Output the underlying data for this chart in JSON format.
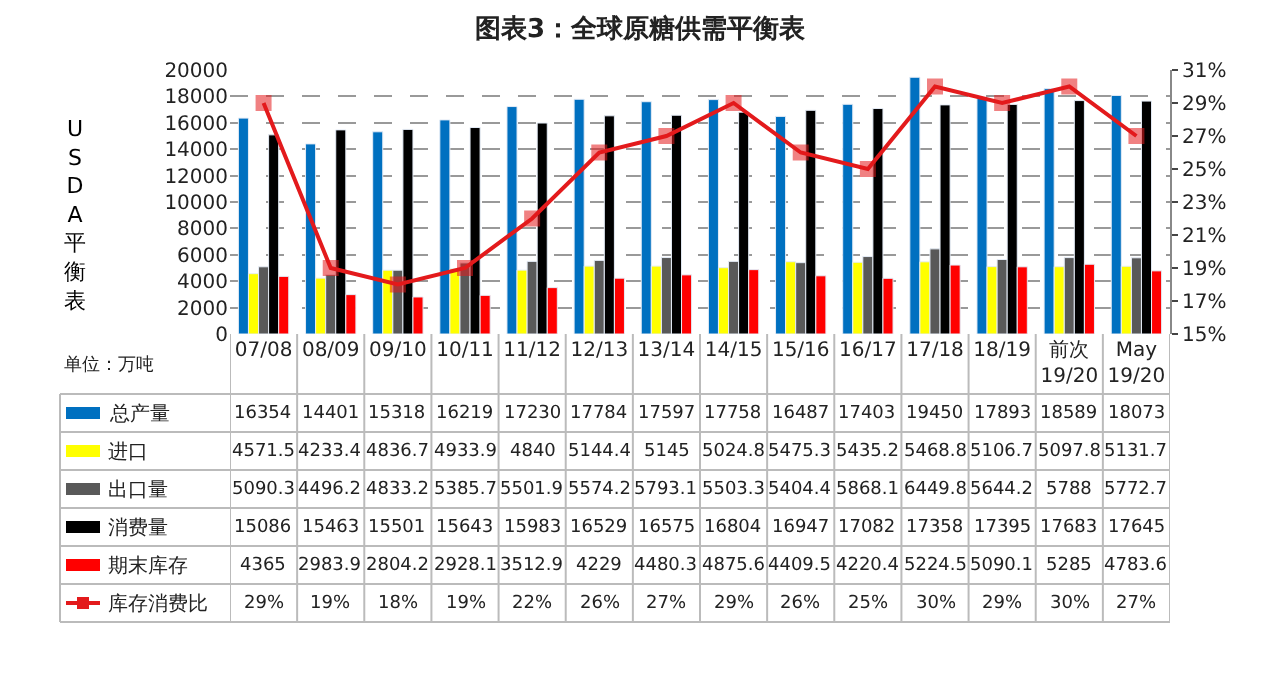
{
  "chart_data": {
    "type": "bar",
    "title": "图表3：全球原糖供需平衡表",
    "ylabel": "USDA平衡表",
    "annotations": [
      "单位：万吨"
    ],
    "categories": [
      "07/08",
      "08/09",
      "09/10",
      "10/11",
      "11/12",
      "12/13",
      "13/14",
      "14/15",
      "15/16",
      "16/17",
      "17/18",
      "18/19",
      "前次19/20",
      "May19/20"
    ],
    "series": [
      {
        "name": "总产量",
        "color": "#0070c0",
        "values": [
          16354,
          14401,
          15318,
          16219,
          17230,
          17784,
          17597,
          17758,
          16487,
          17403,
          19450,
          17893,
          18589,
          18073
        ]
      },
      {
        "name": "进口",
        "color": "#ffff00",
        "values": [
          4571.5,
          4233.4,
          4836.7,
          4933.9,
          4840,
          5144.4,
          5145,
          5024.8,
          5475.3,
          5435.2,
          5468.8,
          5106.7,
          5097.8,
          5131.7
        ]
      },
      {
        "name": "出口量",
        "color": "#595959",
        "values": [
          5090.3,
          4496.2,
          4833.2,
          5385.7,
          5501.9,
          5574.2,
          5793.1,
          5503.3,
          5404.4,
          5868.1,
          6449.8,
          5644.2,
          5788,
          5772.7
        ]
      },
      {
        "name": "消费量",
        "color": "#000000",
        "values": [
          15086,
          15463,
          15501,
          15643,
          15983,
          16529,
          16575,
          16804,
          16947,
          17082,
          17358,
          17395,
          17683,
          17645
        ]
      },
      {
        "name": "期末库存",
        "color": "#ff0000",
        "values": [
          4365,
          2983.9,
          2804.2,
          2928.1,
          3512.9,
          4229,
          4480.3,
          4875.6,
          4409.5,
          4220.4,
          5224.5,
          5090.1,
          5285,
          4783.6
        ]
      },
      {
        "name": "库存消费比",
        "color": "#e31a1c",
        "type": "line",
        "axis": "y2",
        "marker": "square",
        "values": [
          29,
          19,
          18,
          19,
          22,
          26,
          27,
          29,
          26,
          25,
          30,
          29,
          30,
          27
        ],
        "value_labels": [
          "29%",
          "19%",
          "18%",
          "19%",
          "22%",
          "26%",
          "27%",
          "29%",
          "26%",
          "25%",
          "30%",
          "29%",
          "30%",
          "27%"
        ]
      }
    ],
    "ylim": [
      0,
      20000
    ],
    "yticks": [
      0,
      2000,
      4000,
      6000,
      8000,
      10000,
      12000,
      14000,
      16000,
      18000,
      20000
    ],
    "y2lim": [
      15,
      31
    ],
    "y2ticks": [
      {
        "value": 15,
        "label": "15%"
      },
      {
        "value": 17,
        "label": "17%"
      },
      {
        "value": 19,
        "label": "19%"
      },
      {
        "value": 21,
        "label": "21%"
      },
      {
        "value": 23,
        "label": "23%"
      },
      {
        "value": 25,
        "label": "25%"
      },
      {
        "value": 27,
        "label": "27%"
      },
      {
        "value": 29,
        "label": "29%"
      },
      {
        "value": 31,
        "label": "31%"
      }
    ],
    "grid": "y",
    "legend": "bottom",
    "data_labels": true
  }
}
